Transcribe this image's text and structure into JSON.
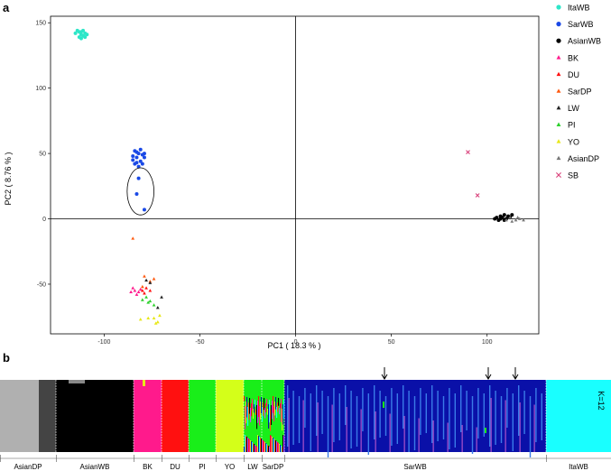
{
  "panel_labels": {
    "a": "a",
    "b": "b"
  },
  "chart_data": [
    {
      "type": "scatter",
      "panel": "a",
      "xlabel": "PC1 ( 18.3 % )",
      "ylabel": "PC2 ( 8.76 % )",
      "xlim": [
        -128,
        127
      ],
      "ylim": [
        -88,
        155
      ],
      "x_ticks": [
        -100,
        -50,
        0,
        50,
        100
      ],
      "y_ticks": [
        -50,
        0,
        50,
        100,
        150
      ],
      "grid": false,
      "legend_position": "right",
      "series": [
        {
          "name": "ItaWB",
          "color": "#2ee6c8",
          "marker": "circle",
          "points": [
            [
              -113,
              143
            ],
            [
              -111,
              140
            ],
            [
              -112,
              141
            ],
            [
              -110,
              142
            ],
            [
              -114,
              144
            ],
            [
              -112,
              138
            ],
            [
              -109,
              141
            ],
            [
              -111,
              144
            ],
            [
              -113,
              139
            ],
            [
              -110,
              139
            ],
            [
              -115,
              142
            ],
            [
              -112,
              143
            ]
          ]
        },
        {
          "name": "SarWB",
          "color": "#1a49e6",
          "marker": "circle",
          "points": [
            [
              -84,
              52
            ],
            [
              -82,
              50
            ],
            [
              -80,
              49
            ],
            [
              -83,
              47
            ],
            [
              -85,
              45
            ],
            [
              -81,
              44
            ],
            [
              -79,
              47
            ],
            [
              -84,
              42
            ],
            [
              -82,
              40
            ],
            [
              -80,
              42
            ],
            [
              -83,
              51
            ],
            [
              -85,
              48
            ],
            [
              -81,
              53
            ],
            [
              -79,
              50
            ],
            [
              -83,
              43
            ],
            [
              -82,
              31
            ],
            [
              -83,
              19
            ],
            [
              -79,
              7
            ]
          ]
        },
        {
          "name": "AsianWB",
          "color": "#000000",
          "marker": "circle",
          "points": [
            [
              105,
              1
            ],
            [
              107,
              2
            ],
            [
              109,
              3
            ],
            [
              111,
              2
            ],
            [
              110,
              0
            ],
            [
              108,
              1
            ],
            [
              106,
              -1
            ],
            [
              112,
              1
            ],
            [
              104,
              0
            ],
            [
              109,
              -1
            ],
            [
              107,
              0
            ],
            [
              113,
              3
            ]
          ]
        },
        {
          "name": "BK",
          "color": "#ff1a8c",
          "marker": "triangle",
          "points": [
            [
              -85,
              -53
            ],
            [
              -84,
              -55
            ],
            [
              -82,
              -56
            ],
            [
              -86,
              -56
            ],
            [
              -83,
              -58
            ],
            [
              -81,
              -54
            ]
          ]
        },
        {
          "name": "DU",
          "color": "#ff1010",
          "marker": "triangle",
          "points": [
            [
              -78,
              -53
            ],
            [
              -79,
              -57
            ],
            [
              -76,
              -55
            ],
            [
              -80,
              -55
            ]
          ]
        },
        {
          "name": "SarDP",
          "color": "#ff5a10",
          "marker": "triangle",
          "points": [
            [
              -85,
              -15
            ],
            [
              -79,
              -44
            ],
            [
              -76,
              -48
            ],
            [
              -74,
              -46
            ],
            [
              -80,
              -52
            ]
          ]
        },
        {
          "name": "LW",
          "color": "#222222",
          "marker": "triangle",
          "points": [
            [
              -78,
              -47
            ],
            [
              -76,
              -49
            ],
            [
              -70,
              -60
            ],
            [
              -72,
              -68
            ]
          ]
        },
        {
          "name": "PI",
          "color": "#2dd12d",
          "marker": "triangle",
          "points": [
            [
              -78,
              -60
            ],
            [
              -76,
              -63
            ],
            [
              -74,
              -66
            ],
            [
              -80,
              -62
            ],
            [
              -77,
              -64
            ]
          ]
        },
        {
          "name": "YO",
          "color": "#e8e81a",
          "marker": "triangle",
          "points": [
            [
              -81,
              -77
            ],
            [
              -77,
              -76
            ],
            [
              -74,
              -76
            ],
            [
              -72,
              -79
            ],
            [
              -71,
              -74
            ],
            [
              -73,
              -80
            ]
          ]
        },
        {
          "name": "AsianDP",
          "color": "#777777",
          "marker": "triangle",
          "points": [
            [
              110,
              -1
            ],
            [
              113,
              -2
            ],
            [
              115,
              -1
            ],
            [
              117,
              0
            ],
            [
              119,
              -1
            ],
            [
              112,
              1
            ],
            [
              116,
              1
            ]
          ]
        },
        {
          "name": "SB",
          "color": "#d9407a",
          "marker": "cross",
          "points": [
            [
              90,
              51
            ],
            [
              95,
              18
            ]
          ]
        }
      ],
      "annotations": [
        {
          "type": "ellipse",
          "center": [
            -81,
            21
          ],
          "rx": 7,
          "ry": 18
        }
      ]
    },
    {
      "type": "stacked-bar",
      "panel": "b",
      "k_label": "K=12",
      "groups": [
        "AsianDP",
        "AsianWB",
        "BK",
        "DU",
        "PI",
        "YO",
        "LW",
        "SarDP",
        "SarWB",
        "ItaWB"
      ],
      "dominant_colors": {
        "AsianDP": "#b0b0b0",
        "AsianWB": "#000000",
        "BK": "#ff1a8c",
        "DU": "#ff1010",
        "PI": "#19ee19",
        "YO": "#d4ff19",
        "LW": "mixed",
        "SarDP": "mixed",
        "SarWB": "#0a10a8",
        "ItaWB": "#19ffff"
      },
      "arrows": 3
    }
  ]
}
